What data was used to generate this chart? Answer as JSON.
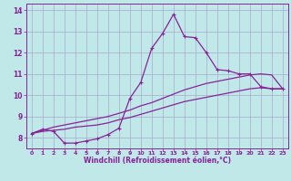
{
  "background_color": "#c0e8e8",
  "grid_color": "#aaaacc",
  "line_color": "#882299",
  "marker": "+",
  "xlabel": "Windchill (Refroidissement éolien,°C)",
  "xlim": [
    -0.5,
    23.5
  ],
  "ylim": [
    7.5,
    14.3
  ],
  "yticks": [
    8,
    9,
    10,
    11,
    12,
    13,
    14
  ],
  "xticks": [
    0,
    1,
    2,
    3,
    4,
    5,
    6,
    7,
    8,
    9,
    10,
    11,
    12,
    13,
    14,
    15,
    16,
    17,
    18,
    19,
    20,
    21,
    22,
    23
  ],
  "curve1_x": [
    0,
    1,
    2,
    3,
    4,
    5,
    6,
    7,
    8,
    9,
    10,
    11,
    12,
    13,
    14,
    15,
    16,
    17,
    18,
    19,
    20,
    21,
    22,
    23
  ],
  "curve1_y": [
    8.2,
    8.4,
    8.3,
    7.75,
    7.75,
    7.85,
    7.95,
    8.15,
    8.45,
    9.85,
    10.6,
    12.2,
    12.9,
    13.8,
    12.75,
    12.7,
    12.0,
    11.2,
    11.15,
    11.0,
    11.0,
    10.4,
    10.3,
    10.3
  ],
  "curve2_x": [
    0,
    1,
    2,
    3,
    4,
    5,
    6,
    7,
    8,
    9,
    10,
    11,
    12,
    13,
    14,
    15,
    16,
    17,
    18,
    19,
    20,
    21,
    22,
    23
  ],
  "curve2_y": [
    8.2,
    8.35,
    8.5,
    8.6,
    8.7,
    8.8,
    8.9,
    9.0,
    9.15,
    9.3,
    9.5,
    9.65,
    9.85,
    10.05,
    10.25,
    10.4,
    10.55,
    10.65,
    10.75,
    10.85,
    10.95,
    11.0,
    10.95,
    10.3
  ],
  "curve3_x": [
    0,
    1,
    2,
    3,
    4,
    5,
    6,
    7,
    8,
    9,
    10,
    11,
    12,
    13,
    14,
    15,
    16,
    17,
    18,
    19,
    20,
    21,
    22,
    23
  ],
  "curve3_y": [
    8.2,
    8.3,
    8.35,
    8.4,
    8.5,
    8.55,
    8.6,
    8.7,
    8.85,
    8.95,
    9.1,
    9.25,
    9.4,
    9.55,
    9.7,
    9.8,
    9.9,
    10.0,
    10.1,
    10.2,
    10.3,
    10.35,
    10.3,
    10.3
  ]
}
